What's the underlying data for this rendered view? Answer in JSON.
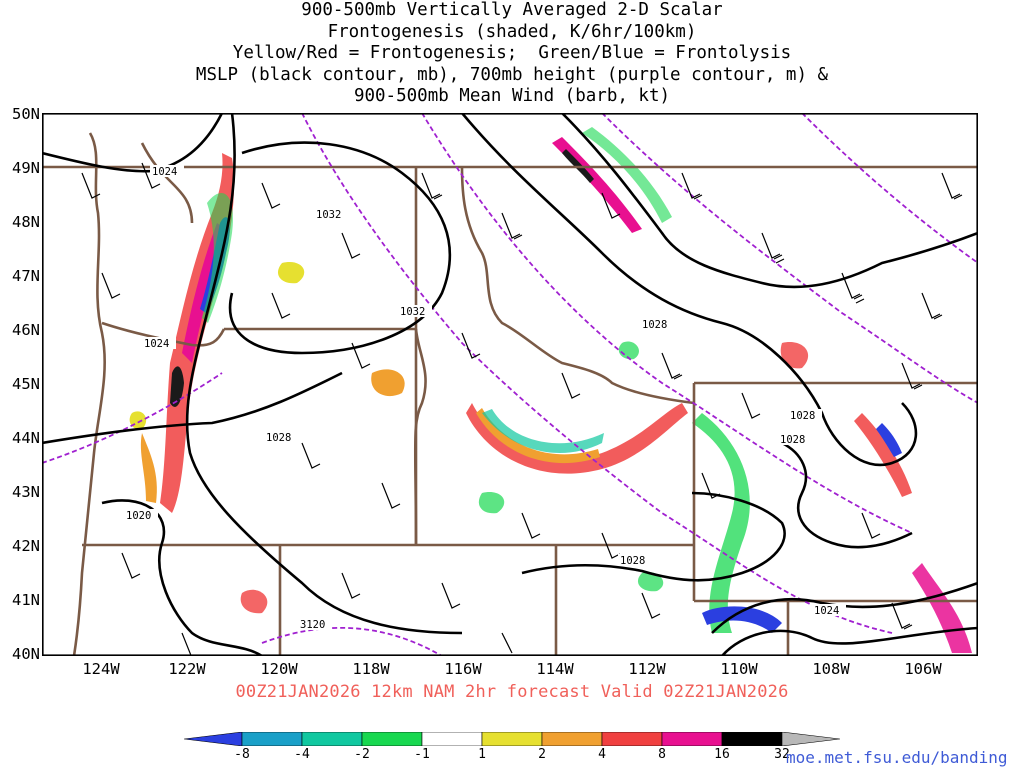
{
  "title_lines": [
    "900-500mb Vertically Averaged 2-D Scalar",
    "Frontogenesis (shaded, K/6hr/100km)",
    "Yellow/Red = Frontogenesis;  Green/Blue = Frontolysis",
    "MSLP (black contour, mb), 700mb height (purple contour, m) &",
    "900-500mb Mean Wind (barb, kt)"
  ],
  "lat_labels": [
    "50N",
    "49N",
    "48N",
    "47N",
    "46N",
    "45N",
    "44N",
    "43N",
    "42N",
    "41N",
    "40N"
  ],
  "lon_labels": [
    "124W",
    "122W",
    "120W",
    "118W",
    "116W",
    "114W",
    "112W",
    "110W",
    "108W",
    "106W"
  ],
  "run_info": "00Z21JAN2026 12km NAM 2hr forecast Valid 02Z21JAN2026",
  "colorbar": {
    "labels": [
      "-8",
      "-4",
      "-2",
      "-1",
      "1",
      "2",
      "4",
      "8",
      "16",
      "32"
    ],
    "colors": [
      "#2b3fe0",
      "#1aa0c8",
      "#10c8a0",
      "#18d850",
      "#ffffff",
      "#e6e030",
      "#f0a030",
      "#f04040",
      "#e81090",
      "#000000",
      "#b8b8b8"
    ]
  },
  "contour_labels": {
    "mslp": [
      "1024",
      "1032",
      "1032",
      "1028",
      "1024",
      "1028",
      "1028",
      "1028",
      "1020",
      "1028",
      "1024"
    ],
    "height_700": [
      "3120"
    ]
  },
  "colors": {
    "mslp": "#000000",
    "height_700": "#a020d0",
    "borders": "#7a5a46",
    "run_text": "#f0605a",
    "credit_text": "#3f5bd6"
  },
  "credit": "moe.met.fsu.edu/banding"
}
